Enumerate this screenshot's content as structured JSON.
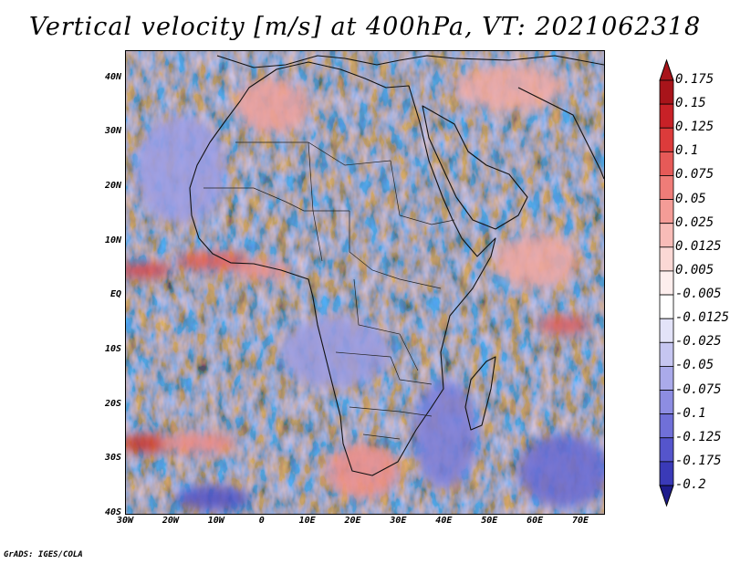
{
  "title": "Vertical velocity [m/s] at 400hPa, VT: 2021062318",
  "credit": "GrADS: IGES/COLA",
  "map": {
    "region": "Africa",
    "lat_range": [
      -40,
      45
    ],
    "lon_range": [
      -30,
      75
    ],
    "lat_ticks": [
      {
        "lat": 40,
        "label": "40N"
      },
      {
        "lat": 30,
        "label": "30N"
      },
      {
        "lat": 20,
        "label": "20N"
      },
      {
        "lat": 10,
        "label": "10N"
      },
      {
        "lat": 0,
        "label": "EQ"
      },
      {
        "lat": -10,
        "label": "10S"
      },
      {
        "lat": -20,
        "label": "20S"
      },
      {
        "lat": -30,
        "label": "30S"
      },
      {
        "lat": -40,
        "label": "40S"
      }
    ],
    "lon_ticks": [
      {
        "lon": -30,
        "label": "30W"
      },
      {
        "lon": -20,
        "label": "20W"
      },
      {
        "lon": -10,
        "label": "10W"
      },
      {
        "lon": 0,
        "label": "0"
      },
      {
        "lon": 10,
        "label": "10E"
      },
      {
        "lon": 20,
        "label": "20E"
      },
      {
        "lon": 30,
        "label": "30E"
      },
      {
        "lon": 40,
        "label": "40E"
      },
      {
        "lon": 50,
        "label": "50E"
      },
      {
        "lon": 60,
        "label": "60E"
      },
      {
        "lon": 70,
        "label": "70E"
      }
    ]
  },
  "colorbar": {
    "levels": [
      {
        "label": "0.175",
        "color": "#a8141a"
      },
      {
        "label": "0.15",
        "color": "#c82127"
      },
      {
        "label": "0.125",
        "color": "#dc3b3b"
      },
      {
        "label": "0.1",
        "color": "#e65a58"
      },
      {
        "label": "0.075",
        "color": "#ef7c78"
      },
      {
        "label": "0.05",
        "color": "#f49c97"
      },
      {
        "label": "0.025",
        "color": "#f8bcb8"
      },
      {
        "label": "0.0125",
        "color": "#fbd8d5"
      },
      {
        "label": "0.005",
        "color": "#fdeeed"
      },
      {
        "label": "-0.005",
        "color": "#ffffff"
      },
      {
        "label": "-0.0125",
        "color": "#e3e3f8"
      },
      {
        "label": "-0.025",
        "color": "#c6c6f1"
      },
      {
        "label": "-0.05",
        "color": "#aaaaea"
      },
      {
        "label": "-0.075",
        "color": "#8d8de2"
      },
      {
        "label": "-0.1",
        "color": "#7070d8"
      },
      {
        "label": "-0.125",
        "color": "#5555cc"
      },
      {
        "label": "-0.175",
        "color": "#3a3ab8"
      },
      {
        "label": "-0.2",
        "color": "#24249c"
      }
    ],
    "top_triangle_color": "#a8141a",
    "bottom_triangle_color": "#1e1c8c"
  }
}
